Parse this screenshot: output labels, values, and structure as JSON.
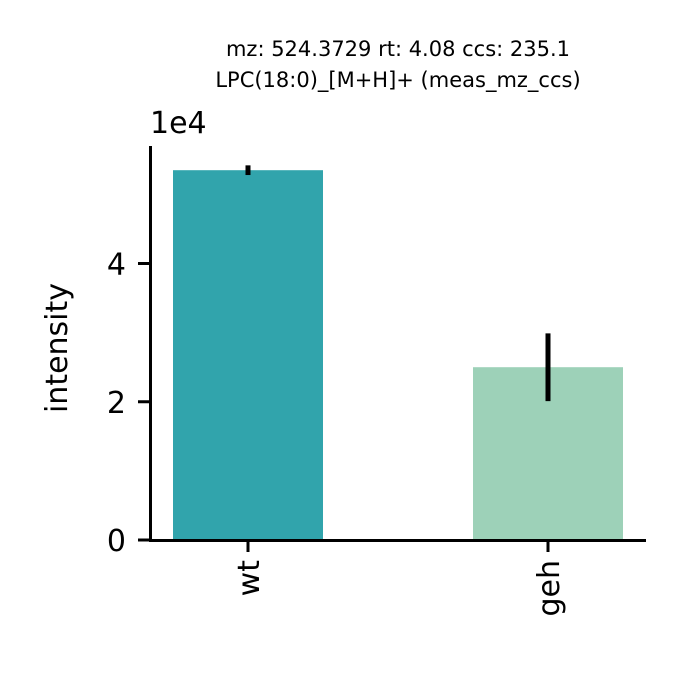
{
  "chart_data": {
    "type": "bar",
    "title_lines": [
      "mz: 524.3729 rt: 4.08 ccs: 235.1",
      "LPC(18:0)_[M+H]+ (meas_mz_ccs)"
    ],
    "xlabel": "",
    "ylabel": "intensity",
    "y_multiplier_label": "1e4",
    "y_scale": 10000,
    "ylim": [
      0,
      57000
    ],
    "yticks": [
      0,
      20000,
      40000
    ],
    "ytick_labels": [
      "0",
      "2",
      "4"
    ],
    "categories": [
      "wt",
      "geh"
    ],
    "values": [
      53500,
      25000
    ],
    "errors": [
      700,
      4900
    ],
    "colors": [
      "#31a4ac",
      "#9dd1b8"
    ],
    "grid": false,
    "legend": "none"
  }
}
